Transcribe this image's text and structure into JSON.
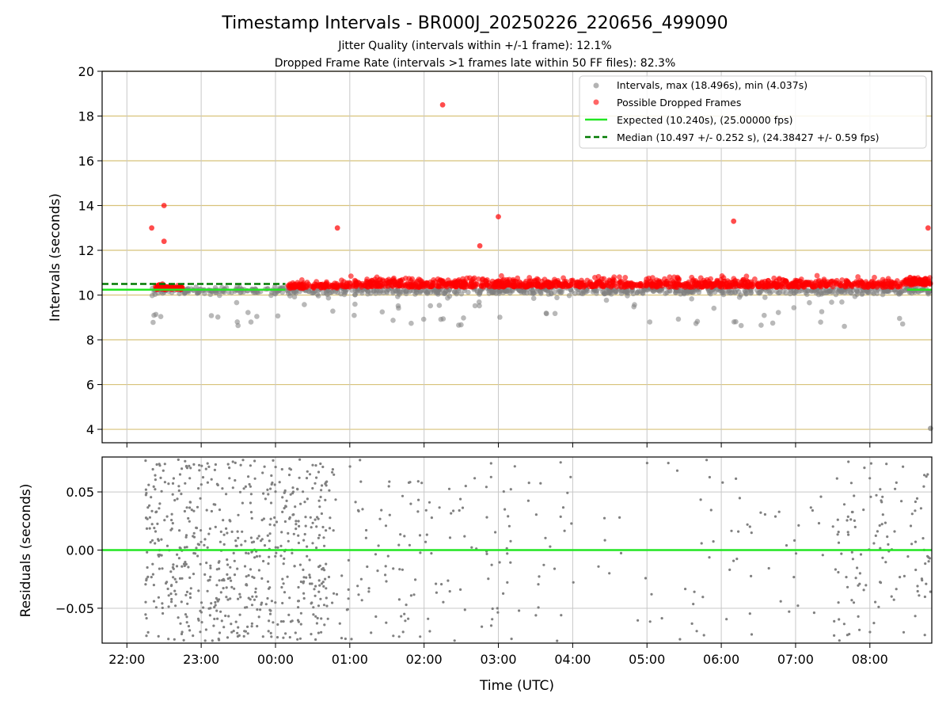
{
  "chart_data": [
    {
      "type": "scatter",
      "title": "Timestamp Intervals - BR000J_20250226_220656_499090",
      "subtitle_1": "Jitter Quality (intervals within +/-1 frame): 12.1%",
      "subtitle_2": "Dropped Frame Rate (intervals >1 frames late within 50 FF files): 82.3%",
      "ylabel": "Intervals (seconds)",
      "ylim": [
        3.4,
        20
      ],
      "yticks": [
        "4",
        "6",
        "8",
        "10",
        "12",
        "14",
        "16",
        "18",
        "20"
      ],
      "ytick_values": [
        4,
        6,
        8,
        10,
        12,
        14,
        16,
        18,
        20
      ],
      "legend_position": "upper right",
      "grid": true,
      "series": [
        {
          "name": "Intervals, max (18.496s), min (4.037s)",
          "color": "#808080",
          "marker": "circle"
        },
        {
          "name": "Possible Dropped Frames",
          "color": "#ff0000",
          "marker": "circle"
        },
        {
          "name": "Expected (10.240s), (25.00000 fps)",
          "color": "#22e622",
          "style": "solid",
          "y": 10.24
        },
        {
          "name": "Median (10.497 +/- 0.252 s), (24.38427 +/- 0.59 fps)",
          "color": "#007a00",
          "style": "dashed",
          "y": 10.497
        }
      ],
      "notable_points": [
        {
          "time": "22:30",
          "y": 14.0
        },
        {
          "time": "22:30",
          "y": 12.4
        },
        {
          "time": "22:20",
          "y": 13.0
        },
        {
          "time": "00:50",
          "y": 13.0
        },
        {
          "time": "02:15",
          "y": 18.5
        },
        {
          "time": "03:00",
          "y": 13.5
        },
        {
          "time": "02:45",
          "y": 12.2
        },
        {
          "time": "06:10",
          "y": 13.3
        },
        {
          "time": "08:47",
          "y": 13.0
        },
        {
          "time": "08:49",
          "y": 4.04
        }
      ]
    },
    {
      "type": "scatter",
      "ylabel": "Residuals (seconds)",
      "xlabel": "Time (UTC)",
      "ylim": [
        -0.08,
        0.08
      ],
      "yticks": [
        "0.05",
        "0.00",
        "−0.05"
      ],
      "ytick_values": [
        0.05,
        0.0,
        -0.05
      ],
      "xticks": [
        "22:00",
        "23:00",
        "00:00",
        "01:00",
        "02:00",
        "03:00",
        "04:00",
        "05:00",
        "06:00",
        "07:00",
        "08:00"
      ],
      "xlim": [
        "21:40",
        "08:50"
      ],
      "grid": true,
      "series": [
        {
          "color": "#808080",
          "marker": "dot"
        },
        {
          "color": "#22e622",
          "style": "solid",
          "y": 0.0
        }
      ]
    }
  ]
}
